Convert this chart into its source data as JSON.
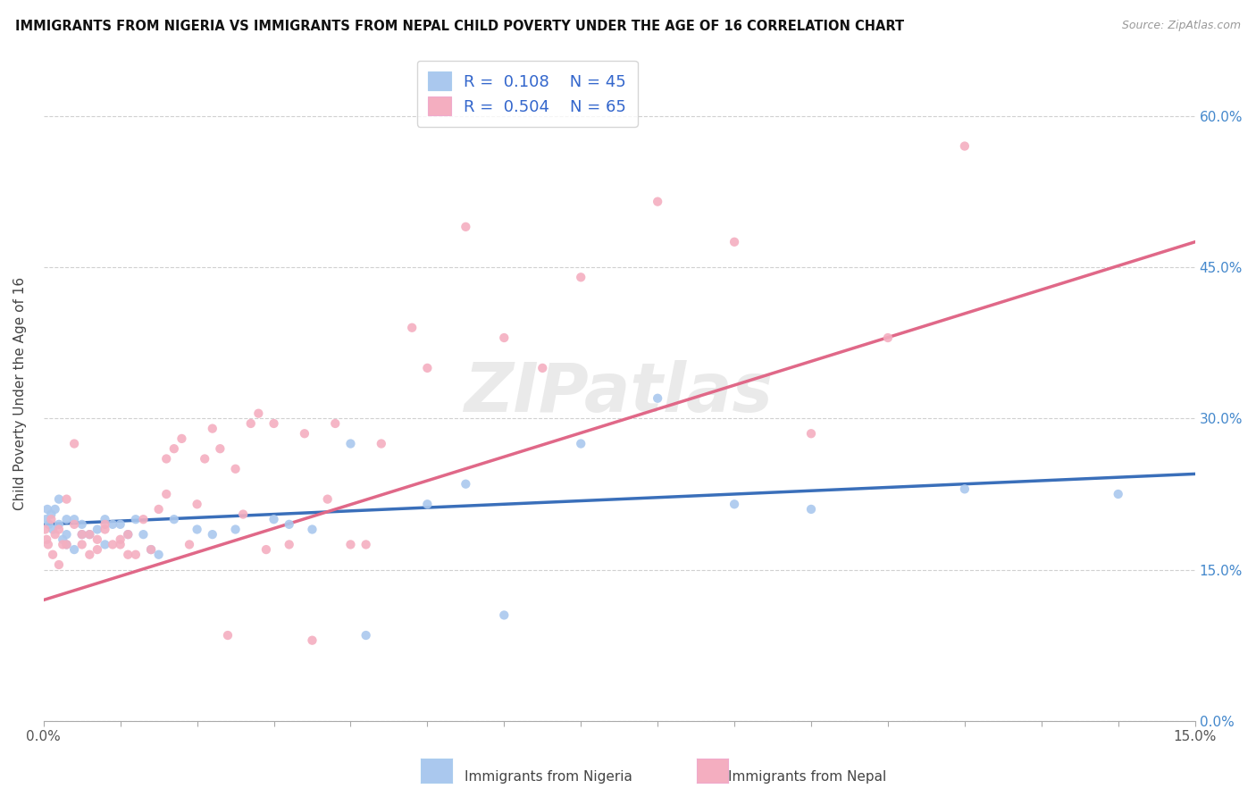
{
  "title": "IMMIGRANTS FROM NIGERIA VS IMMIGRANTS FROM NEPAL CHILD POVERTY UNDER THE AGE OF 16 CORRELATION CHART",
  "source": "Source: ZipAtlas.com",
  "ylabel": "Child Poverty Under the Age of 16",
  "xlabel_nigeria": "Immigrants from Nigeria",
  "xlabel_nepal": "Immigrants from Nepal",
  "watermark": "ZIPatlas",
  "legend_nigeria_R": "0.108",
  "legend_nigeria_N": "45",
  "legend_nepal_R": "0.504",
  "legend_nepal_N": "65",
  "color_nigeria": "#aac8ee",
  "color_nepal": "#f4aec0",
  "line_color_nigeria": "#3a6fba",
  "line_color_nepal": "#e06888",
  "xlim": [
    0.0,
    0.15
  ],
  "ylim": [
    0.0,
    0.65
  ],
  "ytick_positions": [
    0.0,
    0.15,
    0.3,
    0.45,
    0.6
  ],
  "ytick_labels": [
    "0.0%",
    "15.0%",
    "30.0%",
    "45.0%",
    "60.0%"
  ],
  "nigeria_x": [
    0.0003,
    0.0005,
    0.0007,
    0.001,
    0.0012,
    0.0015,
    0.002,
    0.002,
    0.0025,
    0.003,
    0.003,
    0.003,
    0.004,
    0.004,
    0.005,
    0.005,
    0.006,
    0.007,
    0.008,
    0.008,
    0.009,
    0.01,
    0.011,
    0.012,
    0.013,
    0.014,
    0.015,
    0.017,
    0.02,
    0.022,
    0.025,
    0.03,
    0.032,
    0.035,
    0.04,
    0.042,
    0.05,
    0.055,
    0.06,
    0.07,
    0.08,
    0.09,
    0.1,
    0.12,
    0.14
  ],
  "nigeria_y": [
    0.2,
    0.21,
    0.195,
    0.205,
    0.19,
    0.21,
    0.195,
    0.22,
    0.18,
    0.2,
    0.175,
    0.185,
    0.2,
    0.17,
    0.185,
    0.195,
    0.185,
    0.19,
    0.2,
    0.175,
    0.195,
    0.195,
    0.185,
    0.2,
    0.185,
    0.17,
    0.165,
    0.2,
    0.19,
    0.185,
    0.19,
    0.2,
    0.195,
    0.19,
    0.275,
    0.085,
    0.215,
    0.235,
    0.105,
    0.275,
    0.32,
    0.215,
    0.21,
    0.23,
    0.225
  ],
  "nepal_x": [
    0.0002,
    0.0004,
    0.0006,
    0.001,
    0.0012,
    0.0015,
    0.002,
    0.002,
    0.0025,
    0.003,
    0.003,
    0.004,
    0.004,
    0.005,
    0.005,
    0.006,
    0.006,
    0.007,
    0.007,
    0.008,
    0.008,
    0.009,
    0.01,
    0.01,
    0.011,
    0.011,
    0.012,
    0.013,
    0.014,
    0.015,
    0.016,
    0.016,
    0.017,
    0.018,
    0.019,
    0.02,
    0.021,
    0.022,
    0.023,
    0.024,
    0.025,
    0.026,
    0.027,
    0.028,
    0.029,
    0.03,
    0.032,
    0.034,
    0.035,
    0.037,
    0.038,
    0.04,
    0.042,
    0.044,
    0.048,
    0.05,
    0.055,
    0.06,
    0.065,
    0.07,
    0.08,
    0.09,
    0.1,
    0.11,
    0.12
  ],
  "nepal_y": [
    0.19,
    0.18,
    0.175,
    0.2,
    0.165,
    0.185,
    0.19,
    0.155,
    0.175,
    0.175,
    0.22,
    0.195,
    0.275,
    0.185,
    0.175,
    0.165,
    0.185,
    0.18,
    0.17,
    0.19,
    0.195,
    0.175,
    0.18,
    0.175,
    0.185,
    0.165,
    0.165,
    0.2,
    0.17,
    0.21,
    0.225,
    0.26,
    0.27,
    0.28,
    0.175,
    0.215,
    0.26,
    0.29,
    0.27,
    0.085,
    0.25,
    0.205,
    0.295,
    0.305,
    0.17,
    0.295,
    0.175,
    0.285,
    0.08,
    0.22,
    0.295,
    0.175,
    0.175,
    0.275,
    0.39,
    0.35,
    0.49,
    0.38,
    0.35,
    0.44,
    0.515,
    0.475,
    0.285,
    0.38,
    0.57
  ],
  "nigeria_line": {
    "x0": 0.0,
    "y0": 0.195,
    "x1": 0.15,
    "y1": 0.245
  },
  "nepal_line": {
    "x0": 0.0,
    "y0": 0.12,
    "x1": 0.15,
    "y1": 0.475
  }
}
